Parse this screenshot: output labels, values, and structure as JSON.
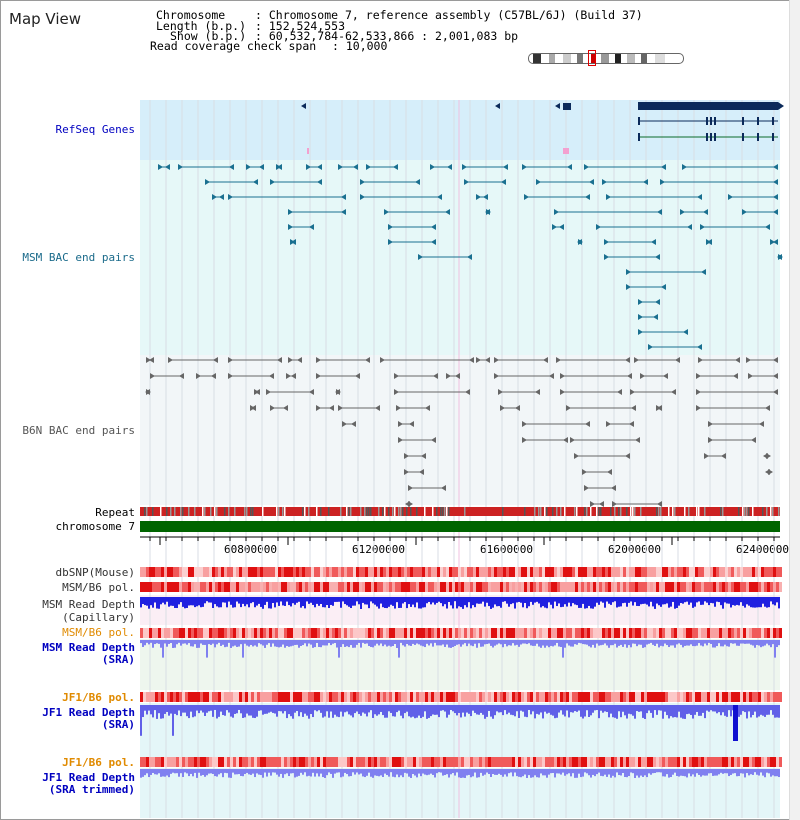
{
  "title": "Map View",
  "info": {
    "chromosome_key": "Chromosome",
    "chromosome_val": ": Chromosome 7, reference assembly (C57BL/6J) (Build 37)",
    "length_key": "Length (b.p.)",
    "length_val": ": 152,524,553",
    "show_key": "Show (b.p.)",
    "show_val": ": 60,532,784-62,533,866 : 2,001,083 bp",
    "span_key": "Read coverage check span",
    "span_val": ": 10,000"
  },
  "tracks": {
    "refseq": "RefSeq Genes",
    "msm_bac": "MSM BAC end pairs",
    "b6n_bac": "B6N BAC end pairs",
    "repeat": "Repeat",
    "chromosome": "chromosome 7",
    "dbsnp": "dbSNP(Mouse)",
    "msm_b6_pol_1": "MSM/B6 pol.",
    "msm_read_depth_cap_1": "MSM Read Depth",
    "msm_read_depth_cap_2": "(Capillary)",
    "msm_b6_pol_2": "MSM/B6 pol.",
    "msm_read_depth_sra_1": "MSM Read Depth",
    "msm_read_depth_sra_2": "(SRA)",
    "jf1_b6_pol_1": "JF1/B6 pol.",
    "jf1_read_depth_sra_1": "JF1 Read Depth",
    "jf1_read_depth_sra_2": "(SRA)",
    "jf1_b6_pol_2": "JF1/B6 pol.",
    "jf1_read_depth_trim_1": "JF1 Read Depth",
    "jf1_read_depth_trim_2": "(SRA trimmed)"
  },
  "axis": {
    "ticks": [
      "60800000",
      "61200000",
      "61600000",
      "62000000",
      "62400000"
    ]
  },
  "colors": {
    "refseq_label": "#0000c0",
    "msm_label": "#1a6a8a",
    "b6n_label": "#555555",
    "pol_orange": "#e08a00",
    "blue_label": "#0000c0",
    "chromosome_green": "#006400"
  }
}
